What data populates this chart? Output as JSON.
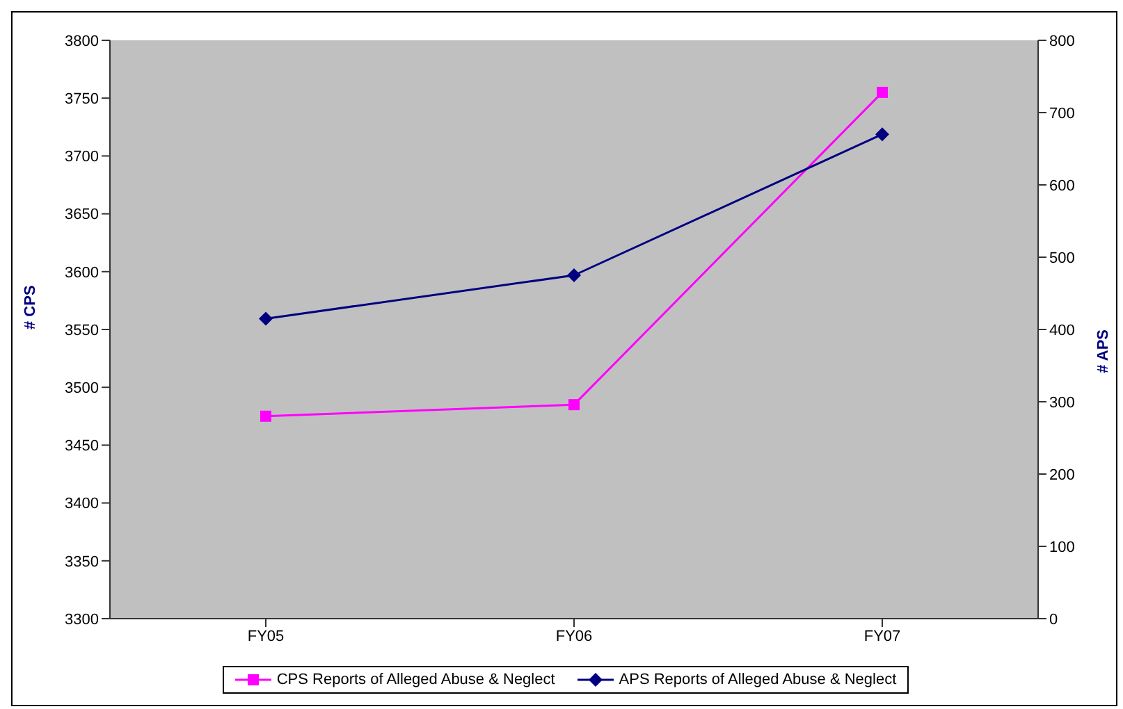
{
  "chart_data": {
    "type": "line",
    "categories": [
      "FY05",
      "FY06",
      "FY07"
    ],
    "series": [
      {
        "name": "CPS Reports of Alleged Abuse & Neglect",
        "color": "#ff00ff",
        "values": [
          3475,
          3485,
          3755
        ],
        "marker": "square"
      },
      {
        "name": "APS Reports of Alleged Abuse & Neglect",
        "color": "#000080",
        "values": [
          415,
          475,
          670
        ],
        "marker": "diamond",
        "axis": "y2"
      }
    ],
    "ylabel": "# CPS",
    "y2label": "# APS",
    "ylim": [
      3300,
      3800
    ],
    "yticks": [
      3300,
      3350,
      3400,
      3450,
      3500,
      3550,
      3600,
      3650,
      3700,
      3750,
      3800
    ],
    "y2lim": [
      0,
      800
    ],
    "y2ticks": [
      0,
      100,
      200,
      300,
      400,
      500,
      600,
      700,
      800
    ],
    "grid": false,
    "legend": "bottom"
  }
}
